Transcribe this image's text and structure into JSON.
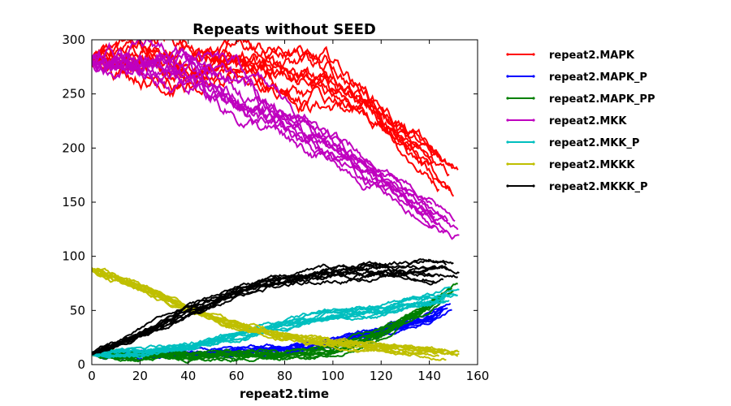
{
  "chart_data": {
    "type": "line",
    "title": "Repeats without SEED",
    "xlabel": "repeat2.time",
    "ylabel": "",
    "xlim": [
      0,
      160
    ],
    "ylim": [
      0,
      300
    ],
    "xticks": [
      0,
      20,
      40,
      60,
      80,
      100,
      120,
      140,
      160
    ],
    "yticks": [
      0,
      50,
      100,
      150,
      200,
      250,
      300
    ],
    "grid": false,
    "legend_position": "outside-right",
    "replicates": 10,
    "x_end_range": [
      140,
      153
    ],
    "series": [
      {
        "name": "repeat2.MAPK",
        "color": "#ff0000",
        "x": [
          0,
          20,
          40,
          60,
          80,
          100,
          120,
          140,
          150
        ],
        "y": [
          280,
          285,
          284,
          280,
          272,
          258,
          230,
          188,
          168
        ]
      },
      {
        "name": "repeat2.MAPK_P",
        "color": "#0000ff",
        "x": [
          0,
          20,
          40,
          60,
          80,
          100,
          120,
          140,
          150
        ],
        "y": [
          10,
          8,
          9,
          11,
          14,
          20,
          30,
          42,
          55
        ]
      },
      {
        "name": "repeat2.MAPK_PP",
        "color": "#008000",
        "x": [
          0,
          20,
          40,
          60,
          80,
          100,
          120,
          140,
          150
        ],
        "y": [
          10,
          9,
          8,
          9,
          10,
          15,
          30,
          55,
          72
        ]
      },
      {
        "name": "repeat2.MKK",
        "color": "#bf00bf",
        "x": [
          0,
          20,
          40,
          60,
          80,
          100,
          120,
          140,
          150
        ],
        "y": [
          280,
          278,
          270,
          250,
          222,
          195,
          170,
          140,
          125
        ]
      },
      {
        "name": "repeat2.MKK_P",
        "color": "#00bfbf",
        "x": [
          0,
          20,
          40,
          60,
          80,
          100,
          120,
          140,
          150
        ],
        "y": [
          10,
          12,
          18,
          28,
          38,
          45,
          50,
          60,
          65
        ]
      },
      {
        "name": "repeat2.MKKK",
        "color": "#bfbf00",
        "x": [
          0,
          20,
          40,
          60,
          80,
          100,
          120,
          140,
          150
        ],
        "y": [
          88,
          72,
          52,
          36,
          26,
          20,
          16,
          12,
          10
        ]
      },
      {
        "name": "repeat2.MKKK_P",
        "color": "#000000",
        "x": [
          0,
          20,
          40,
          60,
          80,
          100,
          120,
          140,
          150
        ],
        "y": [
          10,
          28,
          50,
          68,
          78,
          84,
          88,
          89,
          88
        ]
      }
    ]
  }
}
